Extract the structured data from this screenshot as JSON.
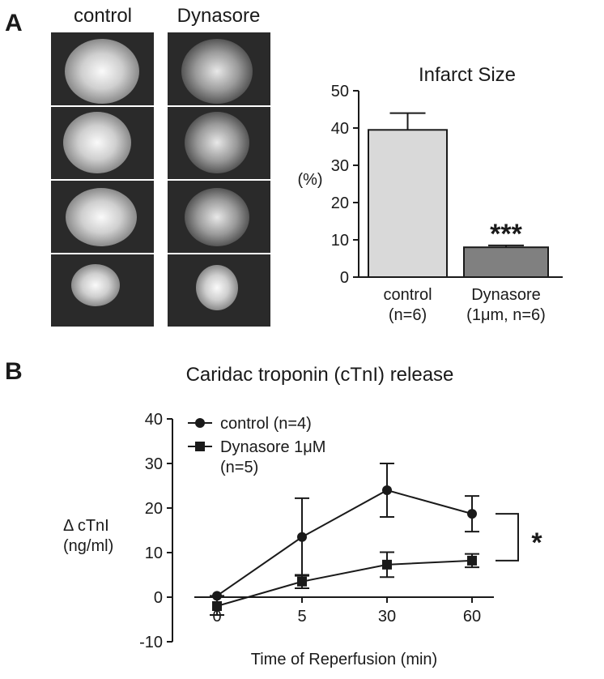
{
  "figure": {
    "panels": [
      "A",
      "B"
    ],
    "image_columns": [
      "control",
      "Dynasore"
    ]
  },
  "chart_data": [
    {
      "type": "bar",
      "title": "Infarct Size",
      "y_label": "(%)",
      "categories": [
        "control\n(n=6)",
        "Dynasore\n(1μm, n=6)"
      ],
      "values": [
        39.5,
        8
      ],
      "errors": [
        4.5,
        0.5
      ],
      "colors": [
        "#d9d9d9",
        "#808080"
      ],
      "annotation": "***",
      "ylim": [
        0,
        50
      ],
      "yticks": [
        0,
        10,
        20,
        30,
        40,
        50
      ]
    },
    {
      "type": "line",
      "title": "Caridac troponin (cTnI) release",
      "y_label": "Δ cTnI\n(ng/ml)",
      "x_label": "Time of Reperfusion (min)",
      "categories": [
        "0",
        "5",
        "30",
        "60"
      ],
      "series": [
        {
          "name": "control (n=4)",
          "color": "#1a1a1a",
          "marker": "circle",
          "values": [
            0.3,
            13.5,
            24,
            18.7
          ],
          "errors": [
            0,
            8.7,
            6,
            4
          ]
        },
        {
          "name": "Dynasore 1μM\n(n=5)",
          "color": "#1a1a1a",
          "marker": "square",
          "values": [
            -2,
            3.5,
            7.3,
            8.2
          ],
          "errors": [
            2,
            1.5,
            2.8,
            1.5
          ]
        }
      ],
      "annotation": "*",
      "legend": "upper left",
      "ylim": [
        -10,
        40
      ],
      "yticks": [
        -10,
        0,
        10,
        20,
        30,
        40
      ]
    }
  ]
}
